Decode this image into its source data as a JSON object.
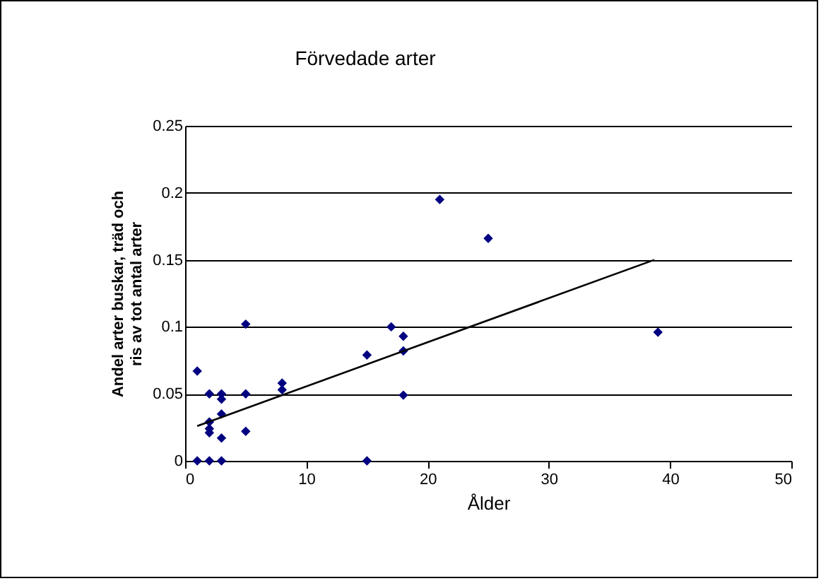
{
  "chart_data": {
    "type": "scatter",
    "title": "Förvedade arter",
    "xlabel": "Ålder",
    "ylabel": "Andel arter buskar, träd och\nris av tot antal arter",
    "xlim": [
      0,
      50
    ],
    "xticks": [
      0,
      10,
      20,
      30,
      40,
      50
    ],
    "ylim": [
      0,
      0.25
    ],
    "yticks": [
      0,
      0.05,
      0.1,
      0.15,
      0.2,
      0.25
    ],
    "grid": "y",
    "marker": "diamond",
    "series": [
      {
        "color": "#000080",
        "x": [
          1,
          1,
          2,
          2,
          2,
          2,
          2,
          3,
          3,
          3,
          3,
          3,
          5,
          5,
          5,
          8,
          8,
          15,
          15,
          17,
          18,
          18,
          18,
          21,
          25,
          39
        ],
        "values": [
          0,
          0.067,
          0,
          0.05,
          0.029,
          0.024,
          0.021,
          0,
          0.05,
          0.046,
          0.035,
          0.017,
          0.102,
          0.05,
          0.022,
          0.058,
          0.053,
          0.079,
          0,
          0.1,
          0.093,
          0.082,
          0.049,
          0.195,
          0.166,
          0.096
        ]
      },
      {
        "type": "line",
        "marker": "none",
        "color": "#000000",
        "x": [
          1,
          38.7
        ],
        "values": [
          0.026,
          0.15
        ]
      }
    ]
  }
}
